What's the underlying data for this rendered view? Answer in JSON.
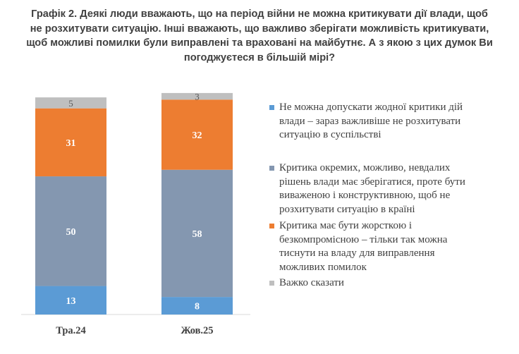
{
  "chart_data": {
    "type": "bar",
    "stacked": true,
    "title": "Графік 2. Деякі люди вважають, що на період війни не можна критикувати дії влади, щоб не розхитувати ситуацію. Інші вважають, що важливо зберігати можливість критикувати, щоб можливі помилки були виправлені та враховані на майбутнє. А з якою з цих думок Ви погоджуєтеся в більшій мірі?",
    "title_lines": [
      "Графік 2. Деякі люди вважають, що на період війни не можна критикувати дії влади, щоб",
      "не розхитувати ситуацію. Інші вважають, що важливо зберігати можливість критикувати,",
      "щоб можливі помилки були виправлені та враховані на майбутнє. А з якою з цих думок Ви",
      "погоджуєтеся в більшій мірі?"
    ],
    "categories": [
      "Тра.24",
      "Жов.25"
    ],
    "ylim": [
      0,
      100
    ],
    "grid": false,
    "legend_position": "right",
    "series": [
      {
        "name": "Не можна допускати жодної критики дій влади – зараз важливіше не розхитувати ситуацію в суспільстві",
        "name_lines": [
          "Не можна допускати жодної критики дій",
          "влади – зараз важливіше не розхитувати",
          "ситуацію в суспільстві"
        ],
        "values": [
          13,
          8
        ],
        "color": "#5b9bd5",
        "label_color": "#ffffff"
      },
      {
        "name": "Критика окремих, можливо, невдалих рішень влади має зберігатися, проте бути виваженою і конструктивною, щоб не розхитувати ситуацію в країні",
        "name_lines": [
          "Критика окремих, можливо, невдалих",
          "рішень влади має зберігатися, проте бути",
          "виваженою і конструктивною, щоб не",
          "розхитувати ситуацію в країні"
        ],
        "values": [
          50,
          58
        ],
        "color": "#8497b0",
        "label_color": "#ffffff"
      },
      {
        "name": "Критика має бути жорсткою і безкомпромісною – тільки так можна тиснути на владу для виправлення можливих помилок",
        "name_lines": [
          "Критика має бути жорсткою і",
          "безкомпромісною – тільки так можна",
          "тиснути на владу для виправлення",
          "можливих помилок"
        ],
        "values": [
          31,
          32
        ],
        "color": "#ed7d31",
        "label_color": "#ffffff"
      },
      {
        "name": "Важко сказати",
        "name_lines": [
          "Важко сказати"
        ],
        "values": [
          5,
          3
        ],
        "color": "#bfbfbf",
        "label_color": "#595959"
      }
    ]
  }
}
